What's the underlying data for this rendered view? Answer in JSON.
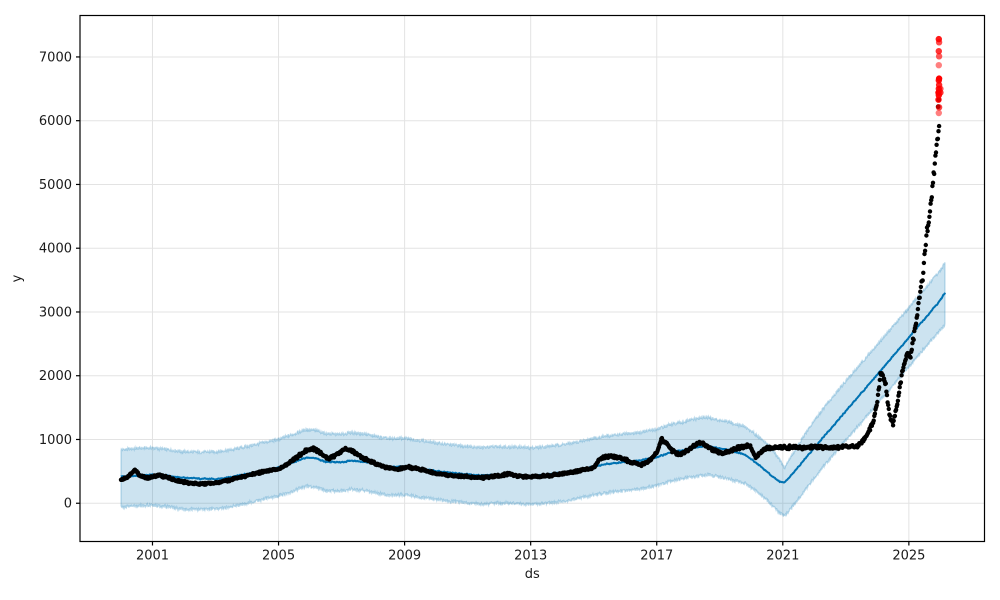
{
  "figure": {
    "background": "#ffffff"
  },
  "chart_data": {
    "type": "scatter",
    "title": "",
    "xlabel": "ds",
    "ylabel": "y",
    "xlim": [
      1998.7,
      2027.4
    ],
    "ylim": [
      -600,
      7650
    ],
    "xticks": [
      2001,
      2005,
      2009,
      2013,
      2017,
      2021,
      2025
    ],
    "yticks": [
      0,
      1000,
      2000,
      3000,
      4000,
      5000,
      6000,
      7000
    ],
    "grid": true,
    "legend": "none",
    "colors": {
      "observed": "#000000",
      "forecast": "#0072B2",
      "band_fill": "rgba(0,114,178,0.2)",
      "band_edge": "rgba(0,114,178,0.25)",
      "anomaly": "#FF0000",
      "gridline": "#E3E3E3",
      "spine": "#000000",
      "text": "#1a1a1a"
    },
    "series": {
      "observed": {
        "name": "observed-points",
        "type": "scatter",
        "keypoints": [
          [
            2000.0,
            370
          ],
          [
            2000.2,
            400
          ],
          [
            2000.45,
            530
          ],
          [
            2000.6,
            430
          ],
          [
            2000.8,
            400
          ],
          [
            2001.0,
            420
          ],
          [
            2001.2,
            440
          ],
          [
            2001.5,
            400
          ],
          [
            2001.8,
            350
          ],
          [
            2002.0,
            330
          ],
          [
            2002.3,
            310
          ],
          [
            2002.6,
            300
          ],
          [
            2003.0,
            320
          ],
          [
            2003.4,
            360
          ],
          [
            2003.8,
            410
          ],
          [
            2004.2,
            460
          ],
          [
            2004.6,
            500
          ],
          [
            2005.0,
            540
          ],
          [
            2005.3,
            620
          ],
          [
            2005.6,
            730
          ],
          [
            2005.9,
            840
          ],
          [
            2006.1,
            860
          ],
          [
            2006.35,
            780
          ],
          [
            2006.6,
            700
          ],
          [
            2006.9,
            780
          ],
          [
            2007.1,
            860
          ],
          [
            2007.4,
            800
          ],
          [
            2007.7,
            700
          ],
          [
            2008.0,
            640
          ],
          [
            2008.4,
            560
          ],
          [
            2008.8,
            530
          ],
          [
            2009.1,
            570
          ],
          [
            2009.4,
            540
          ],
          [
            2009.8,
            490
          ],
          [
            2010.2,
            450
          ],
          [
            2010.6,
            430
          ],
          [
            2011.0,
            420
          ],
          [
            2011.5,
            400
          ],
          [
            2012.0,
            430
          ],
          [
            2012.3,
            460
          ],
          [
            2012.7,
            420
          ],
          [
            2013.0,
            410
          ],
          [
            2013.5,
            430
          ],
          [
            2014.0,
            460
          ],
          [
            2014.5,
            500
          ],
          [
            2015.0,
            560
          ],
          [
            2015.2,
            700
          ],
          [
            2015.5,
            740
          ],
          [
            2015.9,
            700
          ],
          [
            2016.2,
            640
          ],
          [
            2016.5,
            600
          ],
          [
            2016.8,
            680
          ],
          [
            2017.0,
            800
          ],
          [
            2017.15,
            1000
          ],
          [
            2017.3,
            950
          ],
          [
            2017.5,
            820
          ],
          [
            2017.7,
            760
          ],
          [
            2017.9,
            800
          ],
          [
            2018.1,
            870
          ],
          [
            2018.35,
            950
          ],
          [
            2018.6,
            900
          ],
          [
            2018.85,
            820
          ],
          [
            2019.1,
            780
          ],
          [
            2019.4,
            830
          ],
          [
            2019.7,
            890
          ],
          [
            2019.95,
            900
          ],
          [
            2020.15,
            720
          ],
          [
            2020.3,
            800
          ],
          [
            2020.5,
            870
          ],
          [
            2021.0,
            880
          ],
          [
            2021.5,
            875
          ],
          [
            2022.0,
            880
          ],
          [
            2022.5,
            875
          ],
          [
            2023.0,
            880
          ],
          [
            2023.35,
            890
          ],
          [
            2023.6,
            1000
          ],
          [
            2023.85,
            1250
          ],
          [
            2024.0,
            1600
          ],
          [
            2024.1,
            2050
          ],
          [
            2024.25,
            1900
          ],
          [
            2024.4,
            1350
          ],
          [
            2024.5,
            1250
          ],
          [
            2024.65,
            1600
          ],
          [
            2024.8,
            2100
          ],
          [
            2024.95,
            2350
          ],
          [
            2025.05,
            2300
          ],
          [
            2025.15,
            2600
          ],
          [
            2025.25,
            2900
          ],
          [
            2025.35,
            3300
          ],
          [
            2025.45,
            3600
          ],
          [
            2025.5,
            3900
          ],
          [
            2025.55,
            4150
          ],
          [
            2025.62,
            4400
          ],
          [
            2025.7,
            4700
          ],
          [
            2025.78,
            5100
          ],
          [
            2025.85,
            5500
          ],
          [
            2025.92,
            5800
          ],
          [
            2025.97,
            5900
          ]
        ]
      },
      "observed_outliers": {
        "name": "observed-high-outliers",
        "type": "scatter",
        "points": [
          [
            2025.94,
            6430
          ],
          [
            2025.95,
            6330
          ],
          [
            2025.93,
            6220
          ]
        ]
      },
      "forecast": {
        "name": "forecast-line",
        "type": "line",
        "keypoints": [
          [
            2000.0,
            420
          ],
          [
            2000.5,
            430
          ],
          [
            2001.0,
            450
          ],
          [
            2001.5,
            430
          ],
          [
            2002.0,
            400
          ],
          [
            2002.5,
            385
          ],
          [
            2003.0,
            380
          ],
          [
            2003.5,
            410
          ],
          [
            2004.0,
            460
          ],
          [
            2004.5,
            510
          ],
          [
            2005.0,
            560
          ],
          [
            2005.5,
            650
          ],
          [
            2005.9,
            720
          ],
          [
            2006.2,
            700
          ],
          [
            2006.5,
            650
          ],
          [
            2007.0,
            640
          ],
          [
            2007.3,
            670
          ],
          [
            2007.7,
            650
          ],
          [
            2008.0,
            620
          ],
          [
            2008.5,
            565
          ],
          [
            2009.0,
            580
          ],
          [
            2009.5,
            545
          ],
          [
            2010.0,
            505
          ],
          [
            2010.5,
            475
          ],
          [
            2011.0,
            455
          ],
          [
            2011.5,
            435
          ],
          [
            2012.0,
            450
          ],
          [
            2012.5,
            445
          ],
          [
            2013.0,
            430
          ],
          [
            2013.5,
            450
          ],
          [
            2014.0,
            480
          ],
          [
            2014.5,
            520
          ],
          [
            2015.0,
            580
          ],
          [
            2015.5,
            620
          ],
          [
            2016.0,
            645
          ],
          [
            2016.5,
            675
          ],
          [
            2017.0,
            720
          ],
          [
            2017.4,
            790
          ],
          [
            2017.8,
            830
          ],
          [
            2018.2,
            870
          ],
          [
            2018.6,
            900
          ],
          [
            2019.0,
            860
          ],
          [
            2019.4,
            820
          ],
          [
            2019.8,
            760
          ],
          [
            2020.2,
            620
          ],
          [
            2020.6,
            450
          ],
          [
            2020.9,
            340
          ],
          [
            2021.05,
            330
          ],
          [
            2021.2,
            400
          ],
          [
            2021.6,
            630
          ],
          [
            2022.0,
            870
          ],
          [
            2022.4,
            1100
          ],
          [
            2022.8,
            1330
          ],
          [
            2023.2,
            1560
          ],
          [
            2023.6,
            1790
          ],
          [
            2024.0,
            2020
          ],
          [
            2024.4,
            2250
          ],
          [
            2024.8,
            2480
          ],
          [
            2025.2,
            2720
          ],
          [
            2025.6,
            2950
          ],
          [
            2025.9,
            3120
          ],
          [
            2026.15,
            3300
          ]
        ]
      },
      "uncertainty": {
        "name": "uncertainty-band",
        "type": "band",
        "keypoints": [
          [
            2000.0,
            -60,
            840
          ],
          [
            2000.5,
            -40,
            860
          ],
          [
            2001.0,
            -30,
            870
          ],
          [
            2001.5,
            -60,
            840
          ],
          [
            2002.0,
            -90,
            810
          ],
          [
            2002.5,
            -100,
            800
          ],
          [
            2003.0,
            -90,
            810
          ],
          [
            2003.5,
            -60,
            840
          ],
          [
            2004.0,
            0,
            890
          ],
          [
            2004.5,
            60,
            950
          ],
          [
            2005.0,
            110,
            1000
          ],
          [
            2005.5,
            200,
            1090
          ],
          [
            2005.9,
            270,
            1160
          ],
          [
            2006.2,
            250,
            1140
          ],
          [
            2006.5,
            200,
            1090
          ],
          [
            2007.0,
            190,
            1080
          ],
          [
            2007.3,
            220,
            1110
          ],
          [
            2007.7,
            200,
            1090
          ],
          [
            2008.0,
            170,
            1060
          ],
          [
            2008.5,
            120,
            1010
          ],
          [
            2009.0,
            130,
            1020
          ],
          [
            2009.5,
            95,
            985
          ],
          [
            2010.0,
            55,
            945
          ],
          [
            2010.5,
            25,
            915
          ],
          [
            2011.0,
            5,
            895
          ],
          [
            2011.5,
            -15,
            875
          ],
          [
            2012.0,
            0,
            890
          ],
          [
            2012.5,
            -5,
            885
          ],
          [
            2013.0,
            -20,
            870
          ],
          [
            2013.5,
            0,
            890
          ],
          [
            2014.0,
            30,
            920
          ],
          [
            2014.5,
            70,
            960
          ],
          [
            2015.0,
            130,
            1020
          ],
          [
            2015.5,
            170,
            1060
          ],
          [
            2016.0,
            195,
            1085
          ],
          [
            2016.5,
            225,
            1115
          ],
          [
            2017.0,
            270,
            1160
          ],
          [
            2017.4,
            340,
            1230
          ],
          [
            2017.8,
            380,
            1270
          ],
          [
            2018.2,
            420,
            1320
          ],
          [
            2018.6,
            450,
            1350
          ],
          [
            2019.0,
            410,
            1300
          ],
          [
            2019.4,
            370,
            1260
          ],
          [
            2019.8,
            310,
            1200
          ],
          [
            2020.2,
            170,
            1060
          ],
          [
            2020.6,
            0,
            890
          ],
          [
            2020.9,
            -150,
            690
          ],
          [
            2021.05,
            -200,
            560
          ],
          [
            2021.2,
            -120,
            680
          ],
          [
            2021.6,
            130,
            1000
          ],
          [
            2022.0,
            400,
            1300
          ],
          [
            2022.4,
            640,
            1560
          ],
          [
            2022.8,
            870,
            1800
          ],
          [
            2023.2,
            1100,
            2030
          ],
          [
            2023.6,
            1330,
            2260
          ],
          [
            2024.0,
            1560,
            2490
          ],
          [
            2024.4,
            1790,
            2720
          ],
          [
            2024.8,
            2020,
            2950
          ],
          [
            2025.2,
            2260,
            3190
          ],
          [
            2025.6,
            2490,
            3420
          ],
          [
            2025.9,
            2660,
            3590
          ],
          [
            2026.15,
            2800,
            3770
          ]
        ]
      },
      "anomalies": {
        "name": "anomaly-points",
        "type": "scatter",
        "points": [
          [
            2025.95,
            7280,
            0.9
          ],
          [
            2025.96,
            7230,
            0.7
          ],
          [
            2025.95,
            7090,
            0.8
          ],
          [
            2025.96,
            7010,
            0.65
          ],
          [
            2025.95,
            6870,
            0.5
          ],
          [
            2025.96,
            6660,
            1.0
          ],
          [
            2025.95,
            6630,
            0.9
          ],
          [
            2025.96,
            6560,
            0.85
          ],
          [
            2025.95,
            6500,
            0.9
          ],
          [
            2025.94,
            6440,
            1.0
          ],
          [
            2025.95,
            6400,
            0.95
          ],
          [
            2025.94,
            6330,
            0.9
          ],
          [
            2025.96,
            6210,
            0.75
          ],
          [
            2025.95,
            6120,
            0.5
          ],
          [
            2026.0,
            6440,
            0.8
          ],
          [
            2026.0,
            6500,
            0.7
          ]
        ]
      }
    }
  }
}
